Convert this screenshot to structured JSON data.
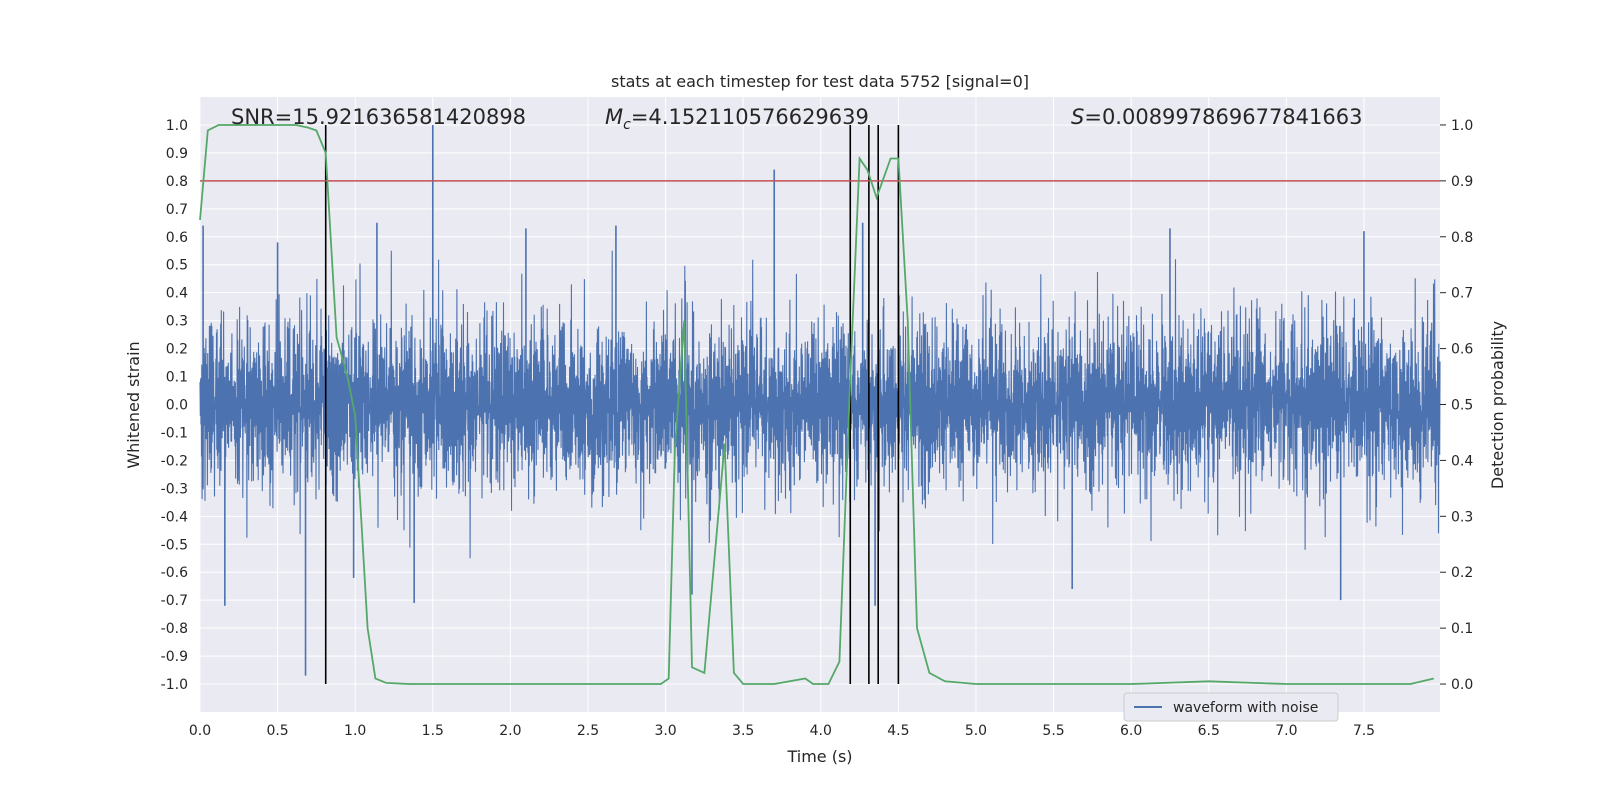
{
  "chart_data": {
    "type": "line",
    "title": "stats at each timestep for test data 5752 [signal=0]",
    "xlabel": "Time (s)",
    "ylabel": "Whitened strain",
    "ylabel_right": "Detection probability",
    "xlim": [
      0.0,
      7.99
    ],
    "ylim": [
      -1.1,
      1.1
    ],
    "ylim_right": [
      -0.05,
      1.05
    ],
    "x_ticks": [
      "0.0",
      "0.5",
      "1.0",
      "1.5",
      "2.0",
      "2.5",
      "3.0",
      "3.5",
      "4.0",
      "4.5",
      "5.0",
      "5.5",
      "6.0",
      "6.5",
      "7.0",
      "7.5"
    ],
    "y_ticks": [
      "1.0",
      "0.9",
      "0.8",
      "0.7",
      "0.6",
      "0.5",
      "0.4",
      "0.3",
      "0.2",
      "0.1",
      "0.0",
      "-0.1",
      "-0.2",
      "-0.3",
      "-0.4",
      "-0.5",
      "-0.6",
      "-0.7",
      "-0.8",
      "-0.9",
      "-1.0"
    ],
    "y_ticks_right": [
      "1.0",
      "0.9",
      "0.8",
      "0.7",
      "0.6",
      "0.5",
      "0.4",
      "0.3",
      "0.2",
      "0.1",
      "0.0"
    ],
    "grid": true,
    "legend": {
      "entries": [
        "waveform with noise"
      ],
      "location": "lower-right"
    },
    "annotations": {
      "snr": "SNR=15.921636581420898",
      "mc_symbol": "M",
      "mc_sub": "c",
      "mc_value": "=4.152110576629639",
      "s_symbol": "S",
      "s_value": "=0.008997869677841663"
    },
    "threshold": 0.9,
    "detection_times": [
      0.81,
      4.19,
      4.31,
      4.37,
      4.5
    ],
    "waveform": {
      "name": "waveform with noise",
      "color": "#4c72b0",
      "sample_rate_approx": 2048,
      "typical_amplitude": 0.2,
      "peaks": [
        {
          "t": 0.02,
          "v": 0.64
        },
        {
          "t": 0.5,
          "v": 0.58
        },
        {
          "t": 0.68,
          "v": -0.97
        },
        {
          "t": 0.99,
          "v": -0.62
        },
        {
          "t": 1.14,
          "v": 0.65
        },
        {
          "t": 1.5,
          "v": 1.0
        },
        {
          "t": 1.38,
          "v": -0.71
        },
        {
          "t": 0.16,
          "v": -0.72
        },
        {
          "t": 2.1,
          "v": 0.63
        },
        {
          "t": 2.68,
          "v": 0.64
        },
        {
          "t": 3.17,
          "v": -0.68
        },
        {
          "t": 3.7,
          "v": 0.84
        },
        {
          "t": 4.27,
          "v": 0.65
        },
        {
          "t": 4.35,
          "v": -0.72
        },
        {
          "t": 5.62,
          "v": -0.66
        },
        {
          "t": 7.35,
          "v": -0.7
        },
        {
          "t": 7.5,
          "v": 0.62
        },
        {
          "t": 6.25,
          "v": 0.63
        }
      ]
    },
    "probability": {
      "color": "#55a868",
      "x": [
        0.0,
        0.05,
        0.12,
        0.25,
        0.5,
        0.62,
        0.7,
        0.75,
        0.81,
        0.88,
        0.95,
        1.0,
        1.08,
        1.13,
        1.2,
        1.35,
        1.6,
        2.0,
        2.4,
        2.6,
        2.97,
        3.02,
        3.06,
        3.12,
        3.17,
        3.25,
        3.38,
        3.44,
        3.5,
        3.7,
        3.9,
        3.95,
        4.05,
        4.12,
        4.19,
        4.25,
        4.3,
        4.36,
        4.45,
        4.5,
        4.56,
        4.62,
        4.7,
        4.8,
        5.0,
        6.0,
        6.5,
        7.0,
        7.8,
        7.95
      ],
      "y": [
        0.83,
        0.99,
        1.0,
        1.0,
        1.0,
        1.0,
        0.995,
        0.99,
        0.95,
        0.62,
        0.55,
        0.48,
        0.1,
        0.01,
        0.002,
        0.0,
        0.0,
        0.0,
        0.0,
        0.0,
        0.0,
        0.01,
        0.42,
        0.65,
        0.03,
        0.02,
        0.43,
        0.02,
        0.0,
        0.0,
        0.01,
        0.0,
        0.0,
        0.04,
        0.55,
        0.94,
        0.92,
        0.87,
        0.94,
        0.94,
        0.65,
        0.1,
        0.02,
        0.005,
        0.0,
        0.0,
        0.005,
        0.0,
        0.0,
        0.01
      ]
    },
    "colors": {
      "axes_bg": "#eaeaf2",
      "grid": "#ffffff",
      "threshold": "#c44e52",
      "detection": "#000000"
    }
  }
}
